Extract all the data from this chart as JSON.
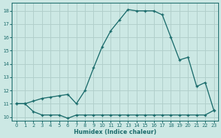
{
  "xlabel": "Humidex (Indice chaleur)",
  "background_color": "#cce8e4",
  "grid_color": "#b0ceca",
  "line_color": "#1a6b6b",
  "xlim": [
    -0.5,
    23.5
  ],
  "ylim": [
    9.7,
    18.6
  ],
  "yticks": [
    10,
    11,
    12,
    13,
    14,
    15,
    16,
    17,
    18
  ],
  "xticks": [
    0,
    1,
    2,
    3,
    4,
    5,
    6,
    7,
    8,
    9,
    10,
    11,
    12,
    13,
    14,
    15,
    16,
    17,
    18,
    19,
    20,
    21,
    22,
    23
  ],
  "line1_x": [
    0,
    1,
    2,
    3,
    4,
    5,
    6,
    7,
    8,
    9,
    10,
    11,
    12,
    13,
    14,
    15,
    16,
    17,
    18,
    19,
    20,
    21,
    22,
    23
  ],
  "line1_y": [
    11.0,
    11.0,
    10.4,
    10.15,
    10.15,
    10.15,
    9.9,
    10.15,
    10.15,
    10.15,
    10.15,
    10.15,
    10.15,
    10.15,
    10.15,
    10.15,
    10.15,
    10.15,
    10.15,
    10.15,
    10.15,
    10.15,
    10.15,
    10.5
  ],
  "line2_x": [
    0,
    1,
    2,
    3,
    4,
    5,
    6,
    7,
    8,
    9,
    10,
    11,
    12,
    13,
    14,
    15,
    16,
    17,
    18,
    19,
    20,
    21,
    22,
    23
  ],
  "line2_y": [
    11.0,
    11.0,
    11.2,
    11.4,
    11.5,
    11.6,
    11.7,
    11.0,
    12.0,
    13.7,
    15.3,
    16.5,
    17.3,
    18.1,
    18.0,
    18.0,
    18.0,
    17.7,
    16.0,
    14.3,
    14.5,
    12.3,
    12.6,
    10.5
  ]
}
